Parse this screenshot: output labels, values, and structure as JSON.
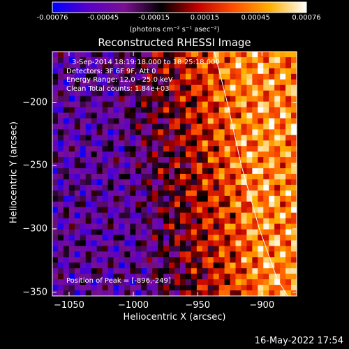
{
  "chart_data": {
    "type": "heatmap",
    "title": "Reconstructed RHESSI Image",
    "xlabel": "Heliocentric X (arcsec)",
    "ylabel": "Heliocentric Y (arcsec)",
    "xlim": [
      -1063,
      -873
    ],
    "ylim": [
      -353,
      -160
    ],
    "x_ticks": [
      "-1050",
      "-1000",
      "-950",
      "-900"
    ],
    "y_ticks": [
      "-200",
      "-250",
      "-300",
      "-350"
    ],
    "colorbar": {
      "ticks": [
        "-0.00076",
        "-0.00045",
        "-0.00015",
        "0.00015",
        "0.00045",
        "0.00076"
      ],
      "range": [
        -0.00076,
        0.00076
      ],
      "unit_label": "(photons cm⁻² s⁻¹ asec⁻²)"
    },
    "annotations": [
      "3-Sep-2014 18:19:18.000 to 18:25:18.000",
      "Detectors: 3F 6F 9F, Att 0",
      "Energy Range: 12.0 - 25.0 keV",
      "Clean     Total counts: 1.84e+03"
    ],
    "peak_label": "Position of Peak = [-896,-249]",
    "peak_position": [
      -896,
      -249
    ],
    "limb": [
      [
        -937,
        -160
      ],
      [
        -927,
        -200
      ],
      [
        -916,
        -250
      ],
      [
        -902,
        -300
      ],
      [
        -888,
        -340
      ],
      [
        -880,
        -353
      ]
    ],
    "colormap": [
      "#0000ff",
      "#5a00c8",
      "#7a1090",
      "#000000",
      "#c00000",
      "#ff5000",
      "#ffb000",
      "#ffffff"
    ]
  },
  "footer": {
    "timestamp": "16-May-2022 17:54"
  }
}
